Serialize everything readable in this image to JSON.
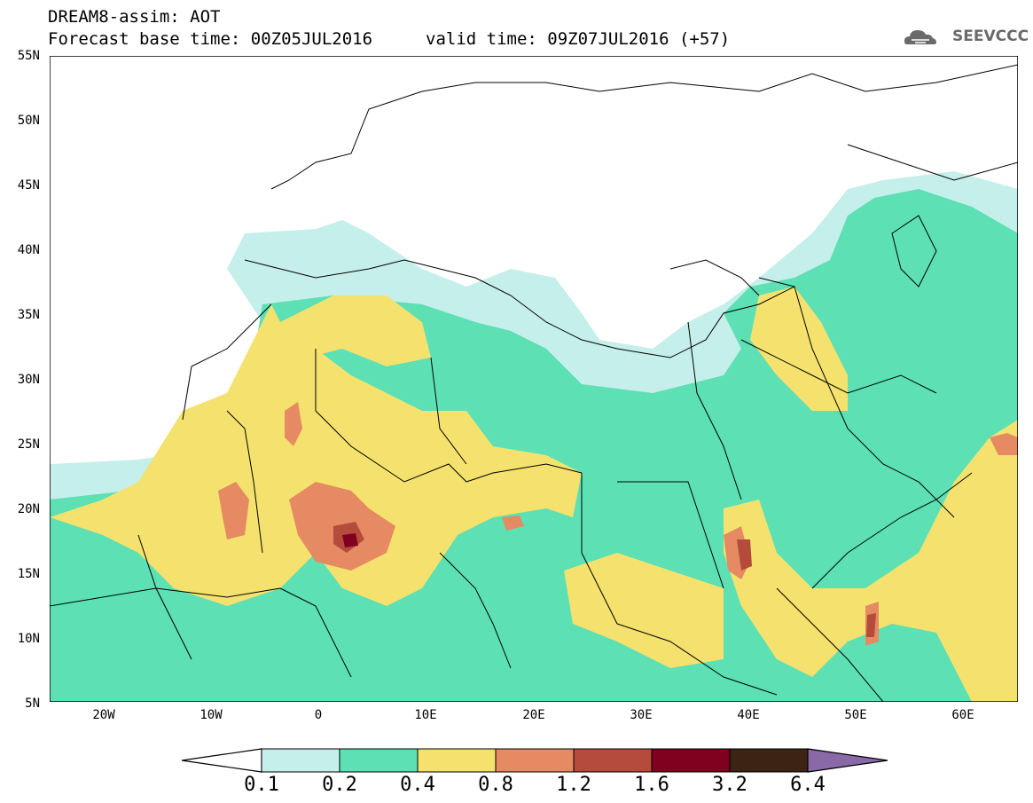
{
  "header": {
    "title_line1": "DREAM8-assim: AOT",
    "title_line2": "Forecast base time: 00Z05JUL2016",
    "valid_time": "valid time: 09Z07JUL2016 (+57)"
  },
  "logo": {
    "text": "SEEVCCC",
    "icon": "cloud-logo-icon"
  },
  "map": {
    "lat_labels": [
      "55N",
      "50N",
      "45N",
      "40N",
      "35N",
      "30N",
      "25N",
      "20N",
      "15N",
      "10N",
      "5N"
    ],
    "lon_labels": [
      "20W",
      "10W",
      "0",
      "10E",
      "20E",
      "30E",
      "40E",
      "50E",
      "60E"
    ],
    "lon_range": [
      -25,
      65
    ],
    "lat_range": [
      5,
      55
    ]
  },
  "colorbar": {
    "labels": [
      "0.1",
      "0.2",
      "0.4",
      "0.8",
      "1.2",
      "1.6",
      "3.2",
      "6.4"
    ],
    "colors": [
      "#ffffff",
      "#c5efea",
      "#5ce0b4",
      "#f5e26e",
      "#e58a62",
      "#b54b3c",
      "#800020",
      "#3d2314",
      "#8a6aa6"
    ]
  },
  "colors": {
    "aot_01": "#c5efea",
    "aot_02": "#5ce0b4",
    "aot_04": "#f5e26e",
    "aot_08": "#e58a62",
    "aot_12": "#b54b3c",
    "aot_16": "#800020",
    "aot_32": "#3d2314",
    "border": "#000000"
  }
}
